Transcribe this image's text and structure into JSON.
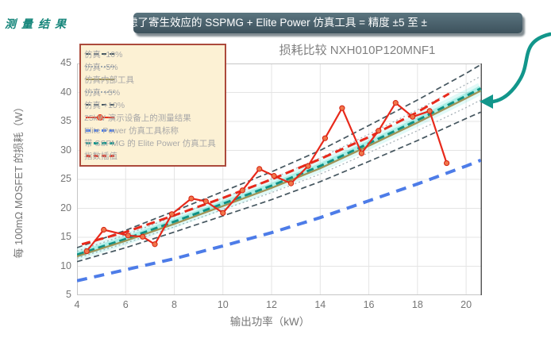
{
  "note": {
    "text": "测量结果",
    "color": "#14857A"
  },
  "banner": {
    "text": "虑了寄生效应的 SSPMG + Elite Power 仿真工具 = 精度 ±5 至 ±",
    "bg": "#4A616C"
  },
  "arrow": {
    "name": "curved-callout-arrow",
    "color": "#12968B"
  },
  "chart_data": {
    "type": "line",
    "title": "损耗比较 NXH010P120MNF1",
    "xlabel": "输出功率（kW）",
    "ylabel": "每 100mΩ MOSFET 的损耗（W）",
    "xlim": [
      4,
      20.65
    ],
    "ylim": [
      5,
      45
    ],
    "xticks": [
      4,
      6,
      8,
      10,
      12,
      14,
      16,
      18,
      20
    ],
    "yticks": [
      5,
      10,
      15,
      20,
      25,
      30,
      35,
      40,
      45
    ],
    "grid": true,
    "legend_position": "top-left",
    "colors": {
      "red": "#E6341F",
      "teal": "#12968B",
      "olive": "#A09253",
      "blue": "#4D7CE8",
      "gray_dark": "#45565F",
      "gray_light": "#9CA7AE"
    },
    "series": [
      {
        "name": "仿真 -10%",
        "color": "#45565F",
        "width": 1.7,
        "dash": "7 4",
        "x": [
          4,
          6,
          8,
          10,
          12,
          14,
          16,
          18,
          20,
          20.6
        ],
        "y": [
          10.8,
          13.2,
          15.9,
          18.7,
          21.5,
          24.6,
          28.1,
          31.7,
          35.5,
          36.6
        ]
      },
      {
        "name": "仿真 -5%",
        "color": "#A8B2B8",
        "width": 1.3,
        "dash": "2 3",
        "x": [
          4,
          6,
          8,
          10,
          12,
          14,
          16,
          18,
          20,
          20.6
        ],
        "y": [
          11.4,
          14.0,
          16.8,
          19.8,
          22.7,
          25.9,
          29.6,
          33.4,
          37.4,
          38.7
        ]
      },
      {
        "name": "仿真 +5%",
        "color": "#A8B2B8",
        "width": 1.3,
        "dash": "2 3",
        "x": [
          4,
          6,
          8,
          10,
          12,
          14,
          16,
          18,
          20,
          20.6
        ],
        "y": [
          12.6,
          15.4,
          18.6,
          21.8,
          25.1,
          28.7,
          32.8,
          37.0,
          41.4,
          42.8
        ]
      },
      {
        "name": "仿真 +10%",
        "color": "#45565F",
        "width": 1.7,
        "dash": "7 4",
        "x": [
          4,
          6,
          8,
          10,
          12,
          14,
          16,
          18,
          20,
          20.6
        ],
        "y": [
          13.2,
          16.2,
          19.5,
          22.9,
          26.3,
          30.0,
          34.3,
          38.7,
          43.3,
          44.8
        ]
      },
      {
        "name": "Elite Power 仿真工具标称",
        "color": "#4D7CE8",
        "width": 4,
        "dash": "13 9",
        "x": [
          4,
          6,
          8,
          10,
          12,
          14,
          16,
          18,
          20,
          20.6
        ],
        "y": [
          7.5,
          9.4,
          11.3,
          13.5,
          15.8,
          18.4,
          21.3,
          24.2,
          27.3,
          28.3
        ]
      },
      {
        "name": "带 SSPMG 的 Elite Power 仿真工具",
        "color": "#0F9185",
        "width": 3,
        "dash": "9 5",
        "glow": true,
        "x": [
          4,
          6,
          8,
          10,
          12,
          14,
          16,
          18,
          20,
          20.6
        ],
        "y": [
          12.0,
          14.7,
          17.7,
          20.8,
          23.9,
          27.3,
          31.2,
          35.2,
          39.4,
          40.7
        ]
      },
      {
        "name": "仿真内部工具",
        "color": "#A09253",
        "width": 2.2,
        "dash": null,
        "x": [
          4,
          6,
          8,
          10,
          12,
          14,
          16,
          18,
          20,
          20.6
        ],
        "y": [
          11.7,
          14.4,
          17.3,
          20.4,
          23.5,
          26.9,
          30.8,
          34.8,
          39.0,
          40.3
        ]
      },
      {
        "name": "指数插值",
        "color": "#E8291B",
        "width": 3,
        "dash": "11 6",
        "x": [
          4.2,
          6,
          8,
          10,
          12,
          14,
          16,
          18,
          19.3
        ],
        "y": [
          13.8,
          15.9,
          18.8,
          21.8,
          25.0,
          28.5,
          32.3,
          36.6,
          39.8
        ]
      },
      {
        "name": "25kW 演示设备上的测量结果",
        "color": "#E8291B",
        "width": 2.2,
        "dash": null,
        "markers": true,
        "marker_fill": "#F0764B",
        "marker_stroke": "#D6200F",
        "x": [
          4.4,
          5.1,
          6.1,
          6.7,
          7.2,
          7.9,
          8.7,
          9.3,
          10.0,
          10.8,
          11.5,
          12.1,
          12.8,
          13.5,
          14.2,
          14.9,
          15.7,
          16.4,
          17.1,
          17.8,
          18.5,
          19.2
        ],
        "y": [
          12.6,
          16.3,
          15.3,
          15.1,
          13.8,
          19.0,
          21.7,
          21.2,
          19.2,
          23.1,
          26.8,
          25.6,
          24.3,
          27.3,
          32.1,
          37.3,
          29.5,
          33.4,
          38.2,
          35.8,
          36.8,
          27.8
        ]
      }
    ],
    "legend": [
      {
        "label": "仿真 -10%",
        "color": "#45565F",
        "style": "dashed",
        "weight": 2
      },
      {
        "label": "仿真 -5%",
        "color": "#9CA7AE",
        "style": "dotted",
        "weight": 2
      },
      {
        "label": "仿真内部工具",
        "color": "#A09253",
        "style": "solid",
        "weight": 2
      },
      {
        "label": "仿真 +5%",
        "color": "#9CA7AE",
        "style": "dotted",
        "weight": 2
      },
      {
        "label": "仿真 +10%",
        "color": "#45565F",
        "style": "dashed",
        "weight": 2
      },
      {
        "label": "25kW 演示设备上的测量结果",
        "color": "#E6341F",
        "style": "solid",
        "weight": 2,
        "marker": true
      },
      {
        "label": "Elite Power 仿真工具标称",
        "color": "#4D7CE8",
        "style": "dashed",
        "weight": 3
      },
      {
        "label": "带 SSPMG 的 Elite Power 仿真工具",
        "color": "#12968B",
        "style": "dashed",
        "weight": 3
      },
      {
        "label": "指数插值",
        "color": "#E6341F",
        "style": "dashed",
        "weight": 3
      }
    ]
  }
}
